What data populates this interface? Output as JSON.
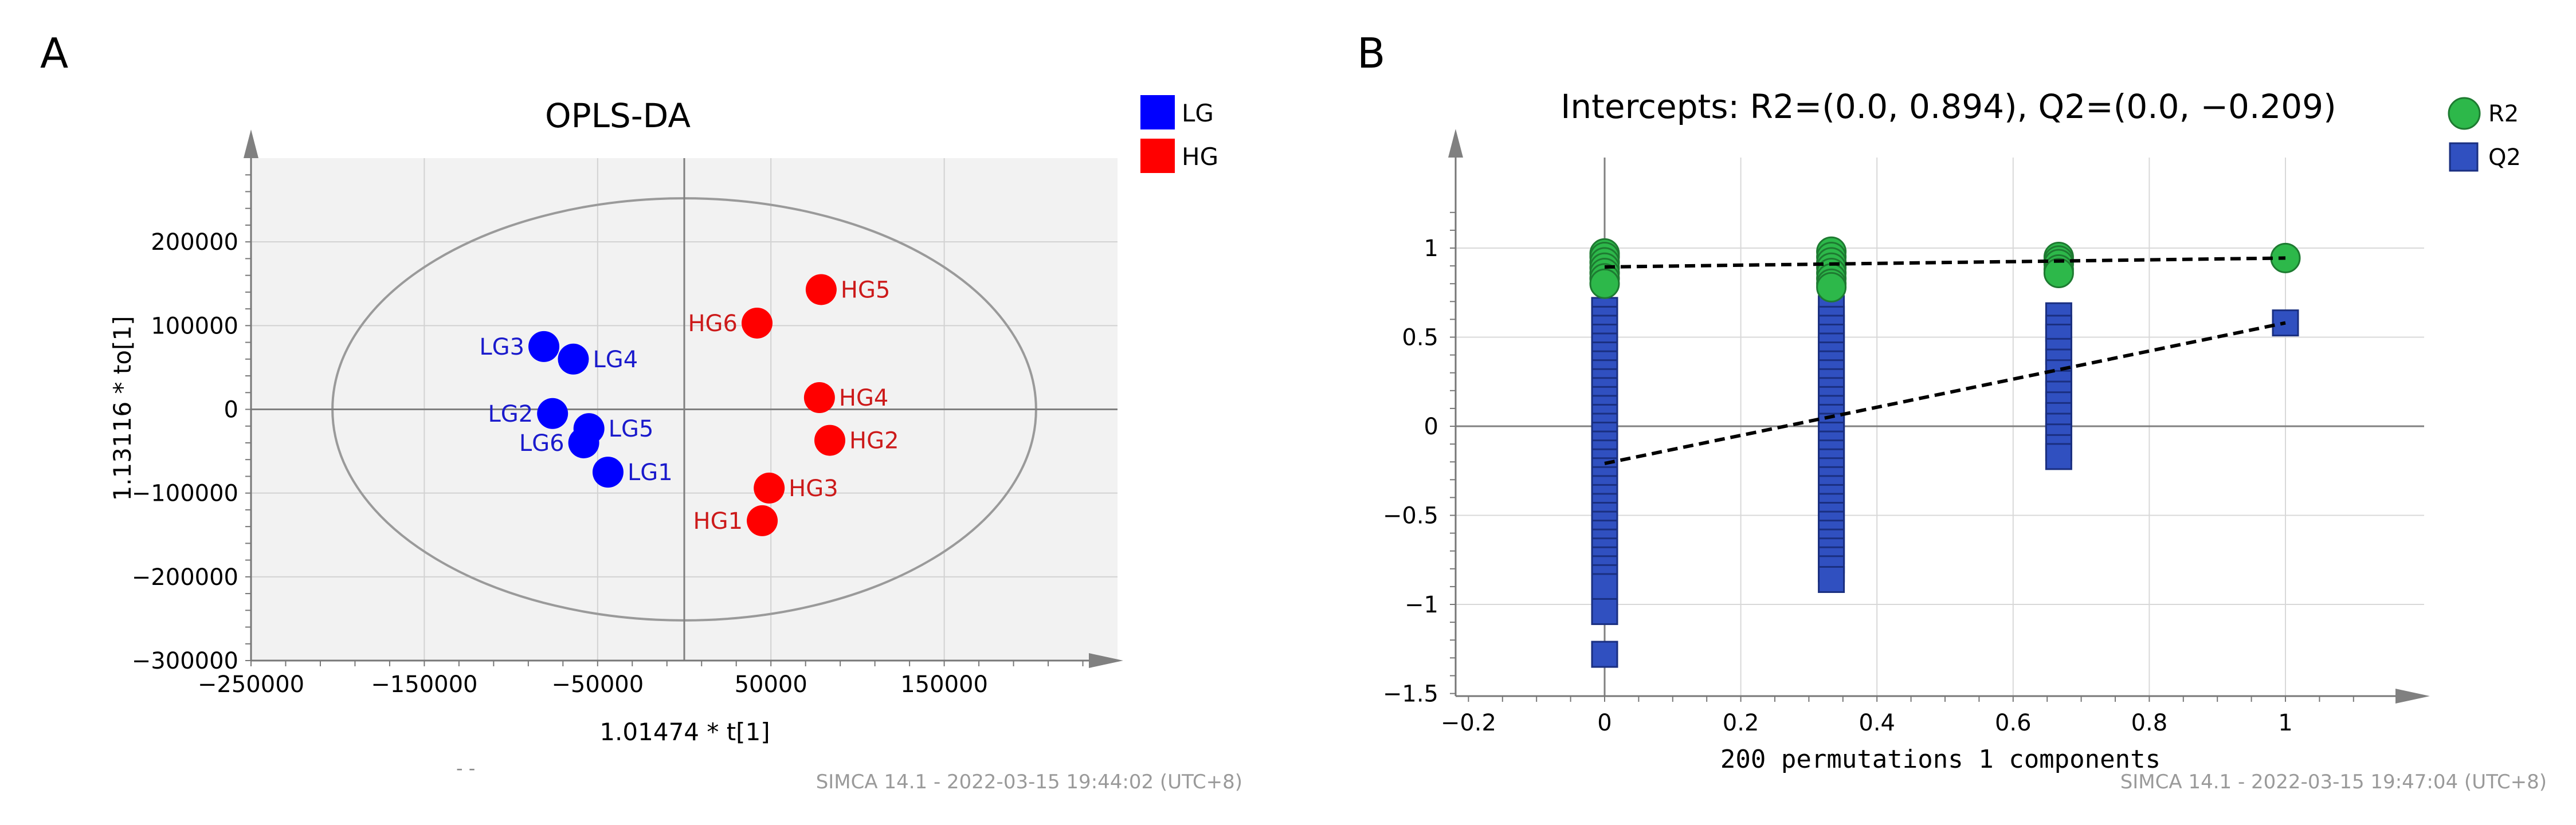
{
  "panels": {
    "a": {
      "letter": "A",
      "footer": "SIMCA 14.1 - 2022-03-15 19:44:02 (UTC+8)",
      "stray_marks": "-  -"
    },
    "b": {
      "letter": "B",
      "footer": "SIMCA 14.1 - 2022-03-15 19:47:04 (UTC+8)"
    }
  },
  "chart_data": [
    {
      "type": "scatter",
      "title": "OPLS-DA",
      "xlabel": "1.01474 * t[1]",
      "ylabel": "1.13116 * to[1]",
      "xlim": [
        -250000,
        250000
      ],
      "ylim": [
        -300000,
        300000
      ],
      "xticks": [
        -250000,
        -150000,
        -50000,
        50000,
        150000
      ],
      "xtick_labels": [
        "−250000",
        "−150000",
        "−50000",
        "50000",
        "150000"
      ],
      "yticks": [
        200000,
        100000,
        0,
        -100000,
        -200000,
        -300000
      ],
      "ytick_labels": [
        "200000",
        "100000",
        "0",
        "−100000",
        "−200000",
        "−300000"
      ],
      "ellipse": {
        "center_x": 0,
        "center_y": 0,
        "semi_x": 203000,
        "semi_y": 252000
      },
      "legend_position": "top-right",
      "series": [
        {
          "name": "LG",
          "color": "#0000ff",
          "label_color": "#1a1acc",
          "points": [
            {
              "label": "LG3",
              "x": -81000,
              "y": 75000,
              "side": "left"
            },
            {
              "label": "LG4",
              "x": -64000,
              "y": 60000,
              "side": "right"
            },
            {
              "label": "LG2",
              "x": -76000,
              "y": -5000,
              "side": "left"
            },
            {
              "label": "LG5",
              "x": -55000,
              "y": -23000,
              "side": "right"
            },
            {
              "label": "LG6",
              "x": -58000,
              "y": -40000,
              "side": "left"
            },
            {
              "label": "LG1",
              "x": -44000,
              "y": -75000,
              "side": "right"
            }
          ]
        },
        {
          "name": "HG",
          "color": "#ff0000",
          "label_color": "#cc1a1a",
          "points": [
            {
              "label": "HG5",
              "x": 79000,
              "y": 143000,
              "side": "right"
            },
            {
              "label": "HG6",
              "x": 42000,
              "y": 103000,
              "side": "left"
            },
            {
              "label": "HG4",
              "x": 78000,
              "y": 14000,
              "side": "right"
            },
            {
              "label": "HG2",
              "x": 84000,
              "y": -37000,
              "side": "right"
            },
            {
              "label": "HG3",
              "x": 49000,
              "y": -94000,
              "side": "right"
            },
            {
              "label": "HG1",
              "x": 45000,
              "y": -133000,
              "side": "left"
            }
          ]
        }
      ]
    },
    {
      "type": "scatter",
      "title": "Intercepts: R2=(0.0, 0.894), Q2=(0.0, −0.209)",
      "xlabel": "200 permutations 1 components",
      "ylabel": "",
      "xlim": [
        -0.2,
        1.2
      ],
      "ylim": [
        -1.5,
        1.5
      ],
      "xticks": [
        -0.2,
        0,
        0.2,
        0.4,
        0.6,
        0.8,
        1
      ],
      "xtick_labels": [
        "−0.2",
        "0",
        "0.2",
        "0.4",
        "0.6",
        "0.8",
        "1"
      ],
      "yticks": [
        1,
        0.5,
        0,
        -0.5,
        -1,
        -1.5
      ],
      "ytick_labels": [
        "1",
        "0.5",
        "0",
        "−0.5",
        "−1",
        "−1.5"
      ],
      "legend_position": "top-right",
      "intercepts": {
        "R2": [
          0.0,
          0.894
        ],
        "Q2": [
          0.0,
          -0.209
        ]
      },
      "series": [
        {
          "name": "R2",
          "marker": "circle",
          "color": "#2db84a",
          "edge": "#1e7a31",
          "points": [
            [
              0,
              0.97
            ],
            [
              0,
              0.95
            ],
            [
              0,
              0.92
            ],
            [
              0,
              0.89
            ],
            [
              0,
              0.86
            ],
            [
              0,
              0.83
            ],
            [
              0,
              0.8
            ],
            [
              0.333,
              0.98
            ],
            [
              0.333,
              0.95
            ],
            [
              0.333,
              0.92
            ],
            [
              0.333,
              0.89
            ],
            [
              0.333,
              0.86
            ],
            [
              0.333,
              0.83
            ],
            [
              0.333,
              0.8
            ],
            [
              0.333,
              0.78
            ],
            [
              0.667,
              0.95
            ],
            [
              0.667,
              0.93
            ],
            [
              0.667,
              0.91
            ],
            [
              0.667,
              0.88
            ],
            [
              0.667,
              0.86
            ],
            [
              1,
              0.944
            ]
          ],
          "regression": [
            [
              0,
              0.894
            ],
            [
              1,
              0.944
            ]
          ]
        },
        {
          "name": "Q2",
          "marker": "square",
          "color": "#3050c0",
          "edge": "#1a2f80",
          "points": [
            [
              0,
              0.65
            ],
            [
              0,
              0.6
            ],
            [
              0,
              0.55
            ],
            [
              0,
              0.5
            ],
            [
              0,
              0.45
            ],
            [
              0,
              0.4
            ],
            [
              0,
              0.35
            ],
            [
              0,
              0.3
            ],
            [
              0,
              0.25
            ],
            [
              0,
              0.2
            ],
            [
              0,
              0.15
            ],
            [
              0,
              0.1
            ],
            [
              0,
              0.05
            ],
            [
              0,
              0.0
            ],
            [
              0,
              -0.05
            ],
            [
              0,
              -0.1
            ],
            [
              0,
              -0.15
            ],
            [
              0,
              -0.2
            ],
            [
              0,
              -0.25
            ],
            [
              0,
              -0.3
            ],
            [
              0,
              -0.35
            ],
            [
              0,
              -0.4
            ],
            [
              0,
              -0.45
            ],
            [
              0,
              -0.5
            ],
            [
              0,
              -0.55
            ],
            [
              0,
              -0.6
            ],
            [
              0,
              -0.65
            ],
            [
              0,
              -0.7
            ],
            [
              0,
              -0.75
            ],
            [
              0,
              -0.8
            ],
            [
              0,
              -0.85
            ],
            [
              0,
              -0.9
            ],
            [
              0,
              -1.04
            ],
            [
              0,
              -1.28
            ],
            [
              0.333,
              0.66
            ],
            [
              0.333,
              0.6
            ],
            [
              0.333,
              0.55
            ],
            [
              0.333,
              0.5
            ],
            [
              0.333,
              0.45
            ],
            [
              0.333,
              0.4
            ],
            [
              0.333,
              0.35
            ],
            [
              0.333,
              0.3
            ],
            [
              0.333,
              0.25
            ],
            [
              0.333,
              0.2
            ],
            [
              0.333,
              0.15
            ],
            [
              0.333,
              0.1
            ],
            [
              0.333,
              0.05
            ],
            [
              0.333,
              0.0
            ],
            [
              0.333,
              -0.05
            ],
            [
              0.333,
              -0.1
            ],
            [
              0.333,
              -0.15
            ],
            [
              0.333,
              -0.2
            ],
            [
              0.333,
              -0.25
            ],
            [
              0.333,
              -0.3
            ],
            [
              0.333,
              -0.35
            ],
            [
              0.333,
              -0.4
            ],
            [
              0.333,
              -0.45
            ],
            [
              0.333,
              -0.5
            ],
            [
              0.333,
              -0.55
            ],
            [
              0.333,
              -0.6
            ],
            [
              0.333,
              -0.65
            ],
            [
              0.333,
              -0.7
            ],
            [
              0.333,
              -0.75
            ],
            [
              0.333,
              -0.8
            ],
            [
              0.333,
              -0.86
            ],
            [
              0.667,
              0.62
            ],
            [
              0.667,
              0.55
            ],
            [
              0.667,
              0.5
            ],
            [
              0.667,
              0.42
            ],
            [
              0.667,
              0.36
            ],
            [
              0.667,
              0.3
            ],
            [
              0.667,
              0.24
            ],
            [
              0.667,
              0.18
            ],
            [
              0.667,
              0.12
            ],
            [
              0.667,
              0.06
            ],
            [
              0.667,
              0.0
            ],
            [
              0.667,
              -0.06
            ],
            [
              0.667,
              -0.12
            ],
            [
              0.667,
              -0.17
            ],
            [
              1,
              0.58
            ]
          ],
          "regression": [
            [
              0,
              -0.209
            ],
            [
              1,
              0.58
            ]
          ]
        }
      ]
    }
  ]
}
